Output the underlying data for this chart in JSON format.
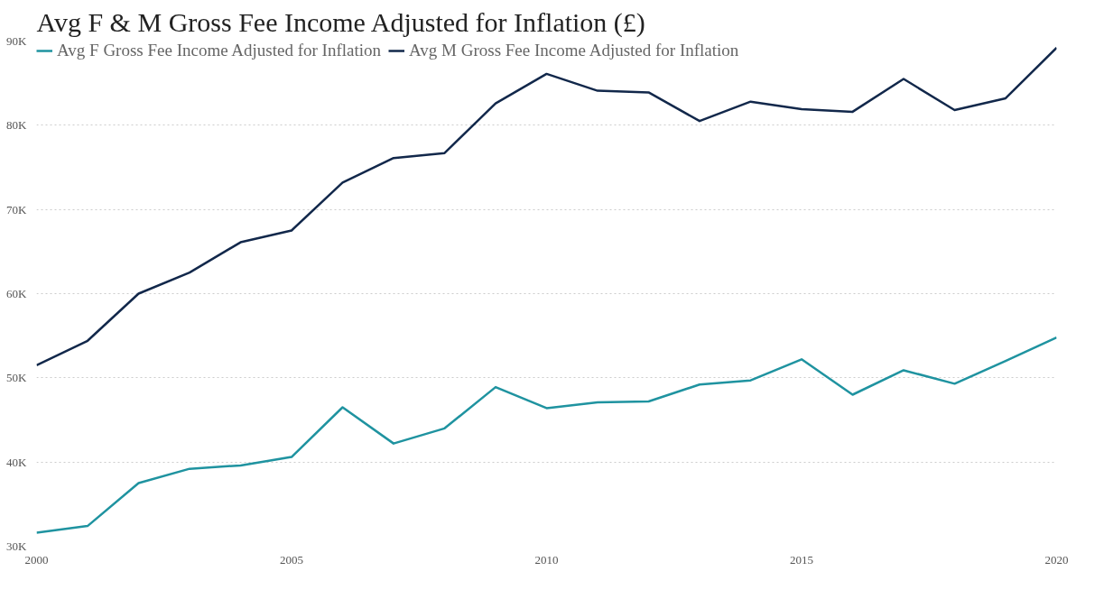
{
  "chart_data": {
    "type": "line",
    "title": "Avg F & M Gross Fee Income Adjusted for Inflation (£)",
    "x": [
      2000,
      2001,
      2002,
      2003,
      2004,
      2005,
      2006,
      2007,
      2008,
      2009,
      2010,
      2011,
      2012,
      2013,
      2014,
      2015,
      2016,
      2017,
      2018,
      2019,
      2020
    ],
    "series": [
      {
        "name": "Avg F Gross Fee Income Adjusted for Inflation",
        "color": "#1f93a0",
        "values": [
          31600,
          32400,
          37500,
          39200,
          39600,
          40600,
          46500,
          42200,
          44000,
          48900,
          46400,
          47100,
          47200,
          49200,
          49700,
          52200,
          48000,
          50900,
          49300,
          52000,
          54800
        ]
      },
      {
        "name": "Avg M Gross Fee Income Adjusted for Inflation",
        "color": "#12284b",
        "values": [
          51500,
          54400,
          60000,
          62500,
          66100,
          67500,
          73200,
          76100,
          76700,
          82600,
          86100,
          84100,
          83900,
          80500,
          82800,
          81900,
          81600,
          85500,
          81800,
          83200,
          89200
        ]
      }
    ],
    "xlim": [
      2000,
      2020
    ],
    "xticks": [
      2000,
      2005,
      2010,
      2015,
      2020
    ],
    "ylim": [
      30000,
      90000
    ],
    "yticks": [
      {
        "value": 30000,
        "label": "30K"
      },
      {
        "value": 40000,
        "label": "40K"
      },
      {
        "value": 50000,
        "label": "50K"
      },
      {
        "value": 60000,
        "label": "60K"
      },
      {
        "value": 70000,
        "label": "70K"
      },
      {
        "value": 80000,
        "label": "80K"
      },
      {
        "value": 90000,
        "label": "90K"
      }
    ],
    "grid": "y",
    "legend": "top left",
    "line_style": "solid",
    "marker": "none"
  }
}
